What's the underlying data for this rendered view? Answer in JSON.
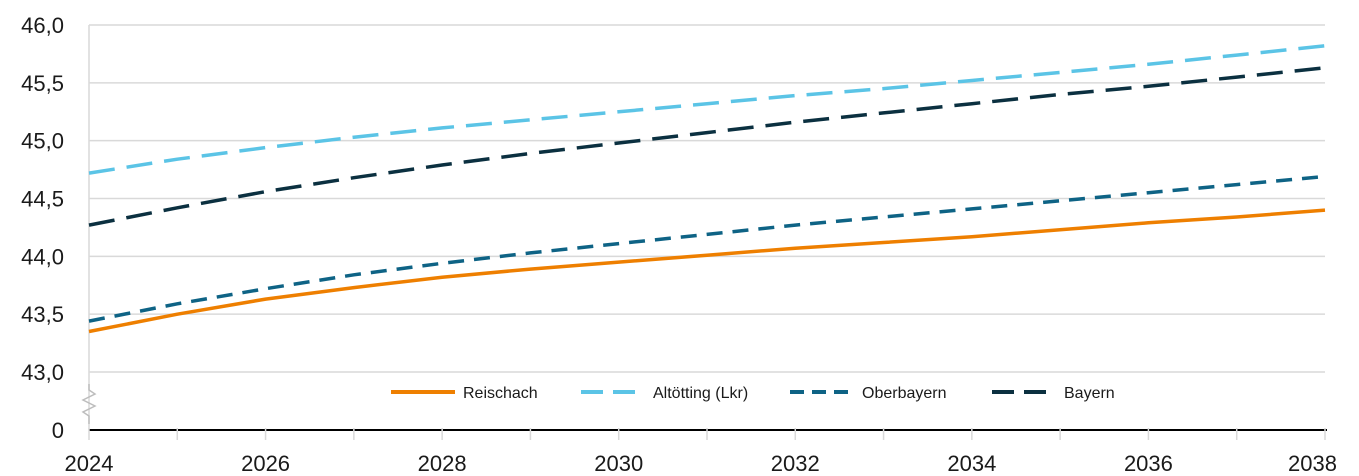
{
  "chart_data": {
    "type": "line",
    "title": "",
    "xlabel": "",
    "ylabel": "",
    "x": [
      2024,
      2025,
      2026,
      2027,
      2028,
      2029,
      2030,
      2031,
      2032,
      2033,
      2034,
      2035,
      2036,
      2037,
      2038
    ],
    "xlim": [
      2024,
      2038
    ],
    "x_ticks": [
      2024,
      2026,
      2028,
      2030,
      2032,
      2034,
      2036,
      2038
    ],
    "x_tick_labels": [
      "2024",
      "2026",
      "2028",
      "2030",
      "2032",
      "2034",
      "2036",
      "2038"
    ],
    "ylim": [
      43.0,
      46.0
    ],
    "y_axis_break": true,
    "y_ticks": [
      43.0,
      43.5,
      44.0,
      44.5,
      45.0,
      45.5,
      46.0
    ],
    "y_tick_labels": [
      "0",
      "43,0",
      "43,5",
      "44,0",
      "44,5",
      "45,0",
      "45,5",
      "46,0"
    ],
    "grid": "horizontal",
    "legend_position": "bottom-center",
    "series": [
      {
        "name": "Reischach",
        "color": "#ee7f00",
        "style": "solid",
        "values": [
          43.35,
          43.5,
          43.63,
          43.73,
          43.82,
          43.89,
          43.95,
          44.01,
          44.07,
          44.12,
          44.17,
          44.23,
          44.29,
          44.34,
          44.4
        ]
      },
      {
        "name": "Altötting (Lkr)",
        "color": "#5bc4e6",
        "style": "long-dash",
        "values": [
          44.72,
          44.84,
          44.94,
          45.03,
          45.11,
          45.18,
          45.25,
          45.32,
          45.39,
          45.45,
          45.52,
          45.59,
          45.66,
          45.74,
          45.82
        ]
      },
      {
        "name": "Oberbayern",
        "color": "#0e6385",
        "style": "dash",
        "values": [
          43.44,
          43.59,
          43.72,
          43.84,
          43.94,
          44.03,
          44.11,
          44.19,
          44.27,
          44.34,
          44.41,
          44.48,
          44.55,
          44.62,
          44.69
        ]
      },
      {
        "name": "Bayern",
        "color": "#0b3040",
        "style": "long-dash",
        "values": [
          44.27,
          44.42,
          44.56,
          44.68,
          44.79,
          44.89,
          44.98,
          45.07,
          45.16,
          45.24,
          45.32,
          45.4,
          45.47,
          45.55,
          45.63
        ]
      }
    ]
  }
}
